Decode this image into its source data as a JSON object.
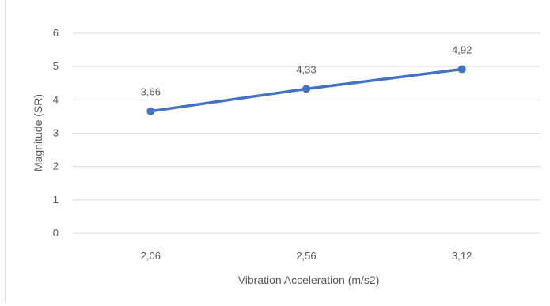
{
  "chart_data": {
    "type": "line",
    "title": "",
    "xlabel": "Vibration Acceleration (m/s2)",
    "ylabel": "Magnitude (SR)",
    "categories": [
      "2,06",
      "2,56",
      "3,12"
    ],
    "series": [
      {
        "values": [
          3.66,
          4.33,
          4.92
        ],
        "value_labels": [
          "3,66",
          "4,33",
          "4,92"
        ],
        "color": "#4472c4"
      }
    ],
    "yticks": [
      "0",
      "1",
      "2",
      "3",
      "4",
      "5",
      "6"
    ],
    "ylim": [
      0,
      6
    ],
    "grid": true,
    "legend": "none",
    "colors": {
      "series": "#4472c4",
      "grid": "#d9d9d9",
      "text": "#595959"
    }
  }
}
